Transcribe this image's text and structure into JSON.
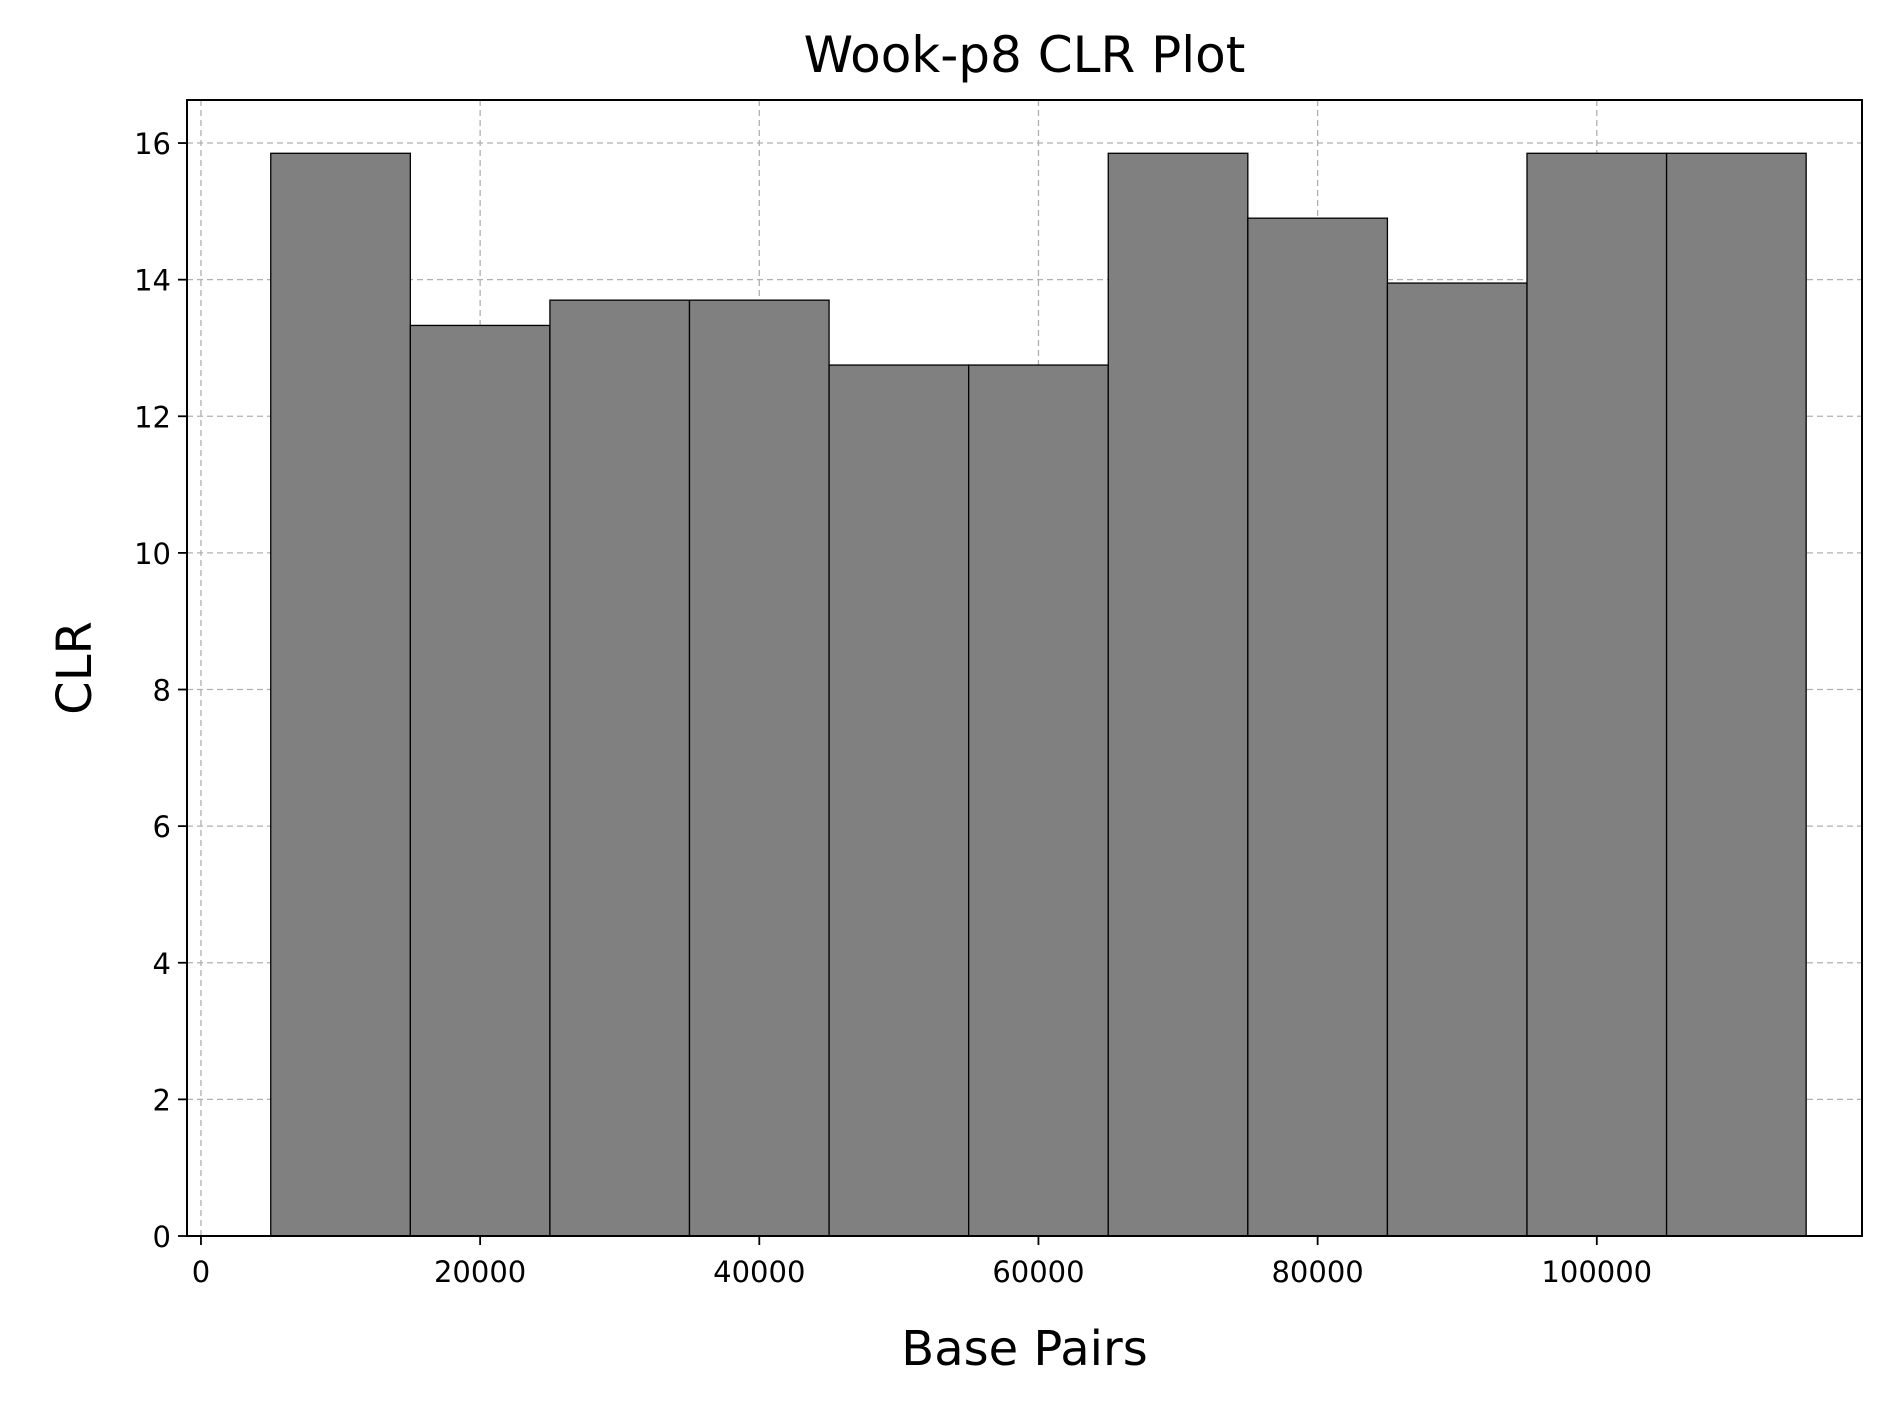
{
  "chart_data": {
    "type": "bar",
    "title": "Wook-p8 CLR Plot",
    "xlabel": "Base Pairs",
    "ylabel": "CLR",
    "bin_width": 10000,
    "x": [
      10000,
      20000,
      30000,
      40000,
      50000,
      60000,
      70000,
      80000,
      90000,
      100000,
      110000
    ],
    "values": [
      15.85,
      13.33,
      13.7,
      13.7,
      12.75,
      12.75,
      15.85,
      14.9,
      13.95,
      15.85,
      15.85
    ],
    "xlim": [
      -1000,
      119000
    ],
    "ylim": [
      0,
      16.63
    ],
    "xticks": [
      0,
      20000,
      40000,
      60000,
      80000,
      100000
    ],
    "yticks": [
      0,
      2,
      4,
      6,
      8,
      10,
      12,
      14,
      16
    ],
    "grid": true,
    "bar_color": "#808080",
    "edge_color": "#000000"
  }
}
